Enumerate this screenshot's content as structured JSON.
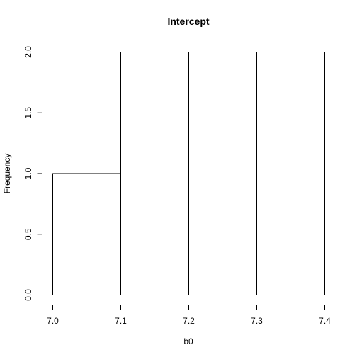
{
  "chart_data": {
    "type": "bar",
    "title": "Intercept",
    "xlabel": "b0",
    "ylabel": "Frequency",
    "bins": [
      {
        "from": 7.0,
        "to": 7.1,
        "count": 1
      },
      {
        "from": 7.1,
        "to": 7.2,
        "count": 2
      },
      {
        "from": 7.2,
        "to": 7.3,
        "count": 0
      },
      {
        "from": 7.3,
        "to": 7.4,
        "count": 2
      }
    ],
    "xlim": [
      7.0,
      7.4
    ],
    "ylim": [
      0,
      2.0
    ],
    "x_ticks": [
      "7.0",
      "7.1",
      "7.2",
      "7.3",
      "7.4"
    ],
    "y_ticks": [
      "0.0",
      "0.5",
      "1.0",
      "1.5",
      "2.0"
    ],
    "grid": false,
    "legend": "none"
  }
}
